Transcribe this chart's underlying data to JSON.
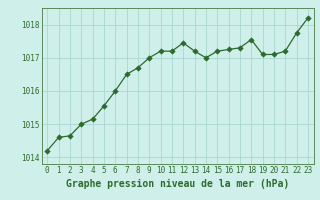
{
  "x": [
    0,
    1,
    2,
    3,
    4,
    5,
    6,
    7,
    8,
    9,
    10,
    11,
    12,
    13,
    14,
    15,
    16,
    17,
    18,
    19,
    20,
    21,
    22,
    23
  ],
  "y": [
    1014.2,
    1014.6,
    1014.65,
    1015.0,
    1015.15,
    1015.55,
    1016.0,
    1016.5,
    1016.7,
    1017.0,
    1017.2,
    1017.2,
    1017.45,
    1017.2,
    1017.0,
    1017.2,
    1017.25,
    1017.3,
    1017.55,
    1017.1,
    1017.1,
    1017.2,
    1017.75,
    1018.2
  ],
  "line_color": "#2d6a2d",
  "marker_color": "#2d6a2d",
  "bg_color": "#cff0ea",
  "grid_color": "#aad8d0",
  "xlabel": "Graphe pression niveau de la mer (hPa)",
  "xlabel_color": "#2d6a2d",
  "ylim": [
    1013.8,
    1018.5
  ],
  "yticks": [
    1014,
    1015,
    1016,
    1017,
    1018
  ],
  "xticks": [
    0,
    1,
    2,
    3,
    4,
    5,
    6,
    7,
    8,
    9,
    10,
    11,
    12,
    13,
    14,
    15,
    16,
    17,
    18,
    19,
    20,
    21,
    22,
    23
  ],
  "tick_color": "#2d6a2d",
  "tick_fontsize": 5.5,
  "xlabel_fontsize": 7.0,
  "marker_size": 2.8,
  "line_width": 0.9,
  "spine_color": "#5a8a5a"
}
